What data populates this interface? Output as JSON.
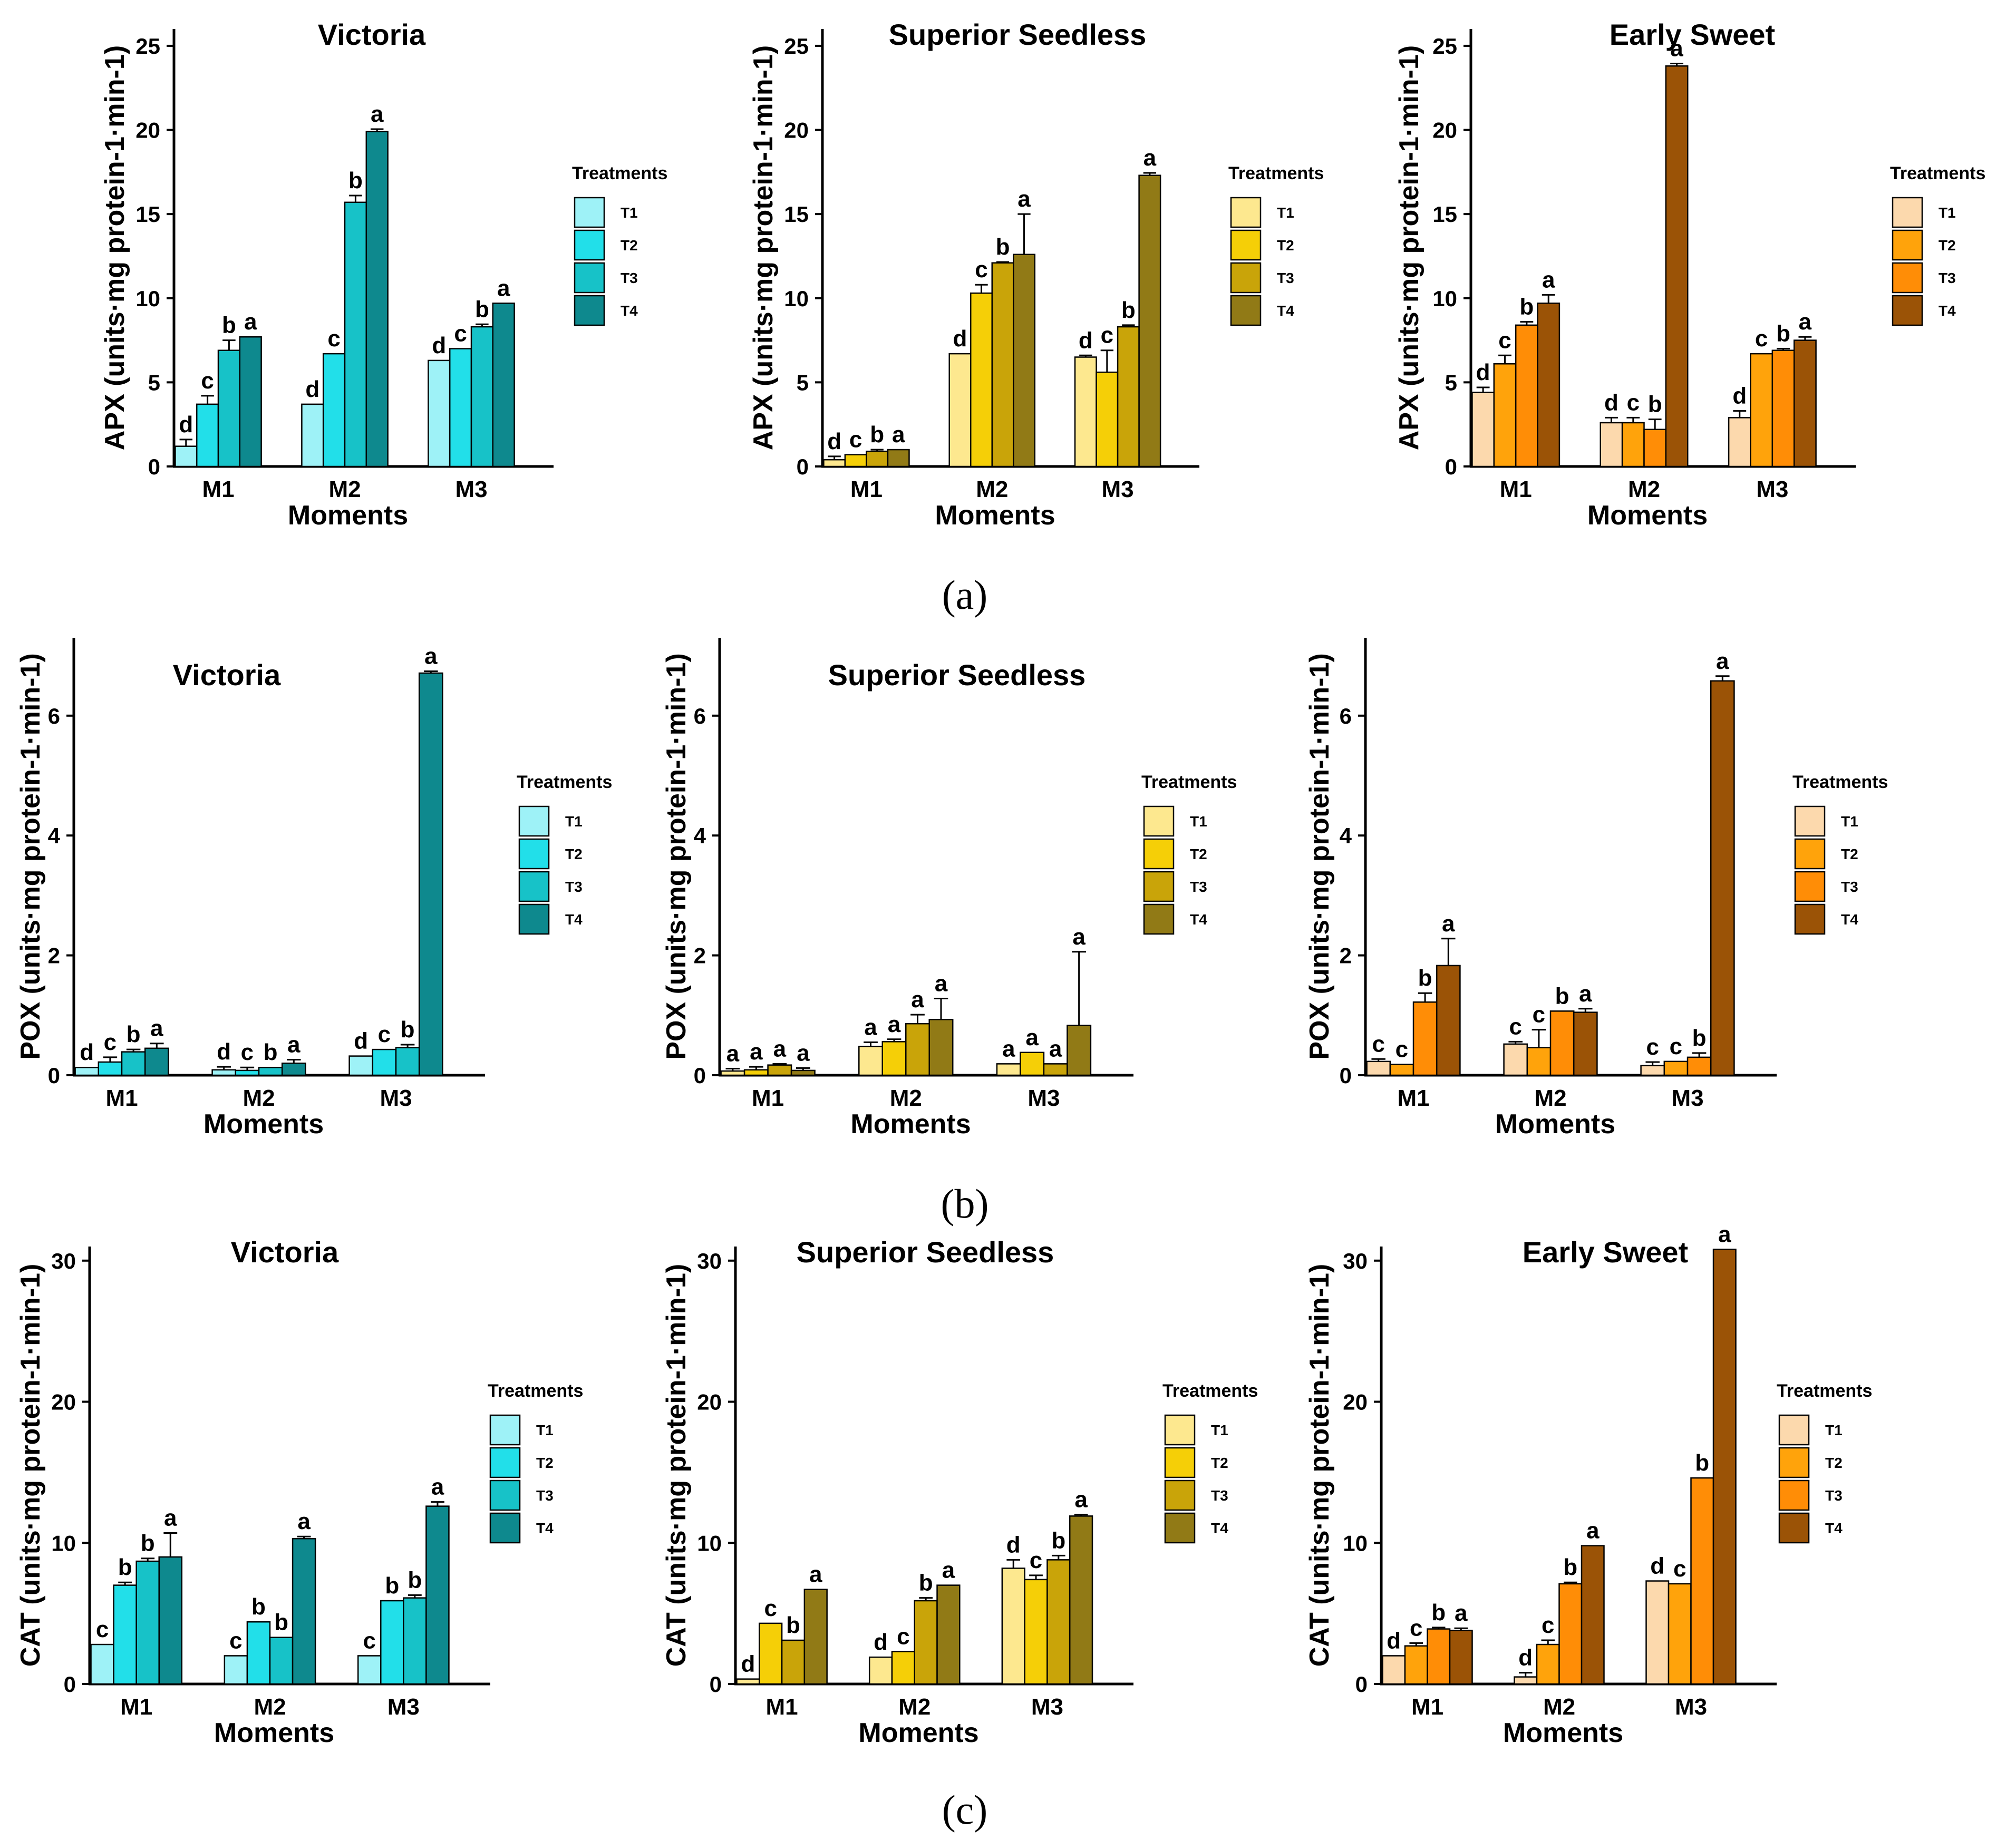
{
  "legend_title": "Treatments",
  "series_names": [
    "T1",
    "T2",
    "T3",
    "T4"
  ],
  "x_label": "Moments",
  "categories": [
    "M1",
    "M2",
    "M3"
  ],
  "palettes": {
    "Victoria": [
      "#9ef2f7",
      "#22dfe9",
      "#17c2c8",
      "#0e898e"
    ],
    "Superior Seedless": [
      "#fde88f",
      "#f5cf07",
      "#c9a409",
      "#917a16"
    ],
    "Early Sweet": [
      "#fcd9ad",
      "#ffa30b",
      "#ff8d06",
      "#9b5306"
    ]
  },
  "panel_labels": [
    "(a)",
    "(b)",
    "(c)"
  ],
  "chart_data": [
    {
      "type": "bar",
      "title": "Victoria",
      "xlabel": "Moments",
      "ylabel": "APX (units·mg protein-1·min-1)",
      "ylim": [
        0,
        26
      ],
      "yticks": [
        0,
        5,
        10,
        15,
        20,
        25
      ],
      "categories": [
        "M1",
        "M2",
        "M3"
      ],
      "series": [
        {
          "name": "T1",
          "values": [
            1.2,
            3.7,
            6.3
          ],
          "errors": [
            0.4,
            0,
            0
          ],
          "letters": [
            "d",
            "d",
            "d"
          ]
        },
        {
          "name": "T2",
          "values": [
            3.7,
            6.7,
            7.0
          ],
          "errors": [
            0.5,
            0,
            0
          ],
          "letters": [
            "c",
            "c",
            "c"
          ]
        },
        {
          "name": "T3",
          "values": [
            6.9,
            15.7,
            8.3
          ],
          "errors": [
            0.6,
            0.4,
            0.15
          ],
          "letters": [
            "b",
            "b",
            "b"
          ]
        },
        {
          "name": "T4",
          "values": [
            7.7,
            19.9,
            9.7
          ],
          "errors": [
            0,
            0.15,
            0
          ],
          "letters": [
            "a",
            "a",
            "a"
          ]
        }
      ]
    },
    {
      "type": "bar",
      "title": "Superior Seedless",
      "xlabel": "Moments",
      "ylabel": "APX (units·mg protein-1·min-1)",
      "ylim": [
        0,
        26
      ],
      "yticks": [
        0,
        5,
        10,
        15,
        20,
        25
      ],
      "categories": [
        "M1",
        "M2",
        "M3"
      ],
      "series": [
        {
          "name": "T1",
          "values": [
            0.4,
            6.7,
            6.5
          ],
          "errors": [
            0.2,
            0,
            0.1
          ],
          "letters": [
            "d",
            "d",
            "d"
          ]
        },
        {
          "name": "T2",
          "values": [
            0.7,
            10.3,
            5.6
          ],
          "errors": [
            0,
            0.5,
            1.3
          ],
          "letters": [
            "c",
            "c",
            "c"
          ]
        },
        {
          "name": "T3",
          "values": [
            0.9,
            12.1,
            8.3
          ],
          "errors": [
            0.1,
            0.05,
            0.1
          ],
          "letters": [
            "b",
            "b",
            "b"
          ]
        },
        {
          "name": "T4",
          "values": [
            1.0,
            12.6,
            17.3
          ],
          "errors": [
            0,
            2.4,
            0.15
          ],
          "letters": [
            "a",
            "a",
            "a"
          ]
        }
      ]
    },
    {
      "type": "bar",
      "title": "Early Sweet",
      "xlabel": "Moments",
      "ylabel": "APX (units·mg protein-1·min-1)",
      "ylim": [
        0,
        26
      ],
      "yticks": [
        0,
        5,
        10,
        15,
        20,
        25
      ],
      "categories": [
        "M1",
        "M2",
        "M3"
      ],
      "series": [
        {
          "name": "T1",
          "values": [
            4.4,
            2.6,
            2.9
          ],
          "errors": [
            0.3,
            0.3,
            0.4
          ],
          "letters": [
            "d",
            "d",
            "d"
          ]
        },
        {
          "name": "T2",
          "values": [
            6.1,
            2.6,
            6.7
          ],
          "errors": [
            0.5,
            0.3,
            0
          ],
          "letters": [
            "c",
            "c",
            "c"
          ]
        },
        {
          "name": "T3",
          "values": [
            8.4,
            2.2,
            6.9
          ],
          "errors": [
            0.2,
            0.6,
            0.1
          ],
          "letters": [
            "b",
            "b",
            "b"
          ]
        },
        {
          "name": "T4",
          "values": [
            9.7,
            23.8,
            7.5
          ],
          "errors": [
            0.5,
            0.15,
            0.2
          ],
          "letters": [
            "a",
            "a",
            "a"
          ]
        }
      ]
    },
    {
      "type": "bar",
      "title": "Victoria",
      "xlabel": "Moments",
      "ylabel": "POX (units·mg protein-1·min-1)",
      "ylim": [
        0,
        7.3
      ],
      "yticks": [
        0,
        2,
        4,
        6
      ],
      "categories": [
        "M1",
        "M2",
        "M3"
      ],
      "series": [
        {
          "name": "T1",
          "values": [
            0.13,
            0.09,
            0.32
          ],
          "errors": [
            0,
            0.05,
            0
          ],
          "letters": [
            "d",
            "d",
            "d"
          ]
        },
        {
          "name": "T2",
          "values": [
            0.22,
            0.08,
            0.43
          ],
          "errors": [
            0.08,
            0.05,
            0
          ],
          "letters": [
            "c",
            "c",
            "c"
          ]
        },
        {
          "name": "T3",
          "values": [
            0.39,
            0.13,
            0.46
          ],
          "errors": [
            0.04,
            0,
            0.05
          ],
          "letters": [
            "b",
            "b",
            "b"
          ]
        },
        {
          "name": "T4",
          "values": [
            0.45,
            0.2,
            6.71
          ],
          "errors": [
            0.08,
            0.06,
            0.03
          ],
          "letters": [
            "a",
            "a",
            "a"
          ]
        }
      ]
    },
    {
      "type": "bar",
      "title": "Superior Seedless",
      "xlabel": "Moments",
      "ylabel": "POX (units·mg protein-1·min-1)",
      "ylim": [
        0,
        7.3
      ],
      "yticks": [
        0,
        2,
        4,
        6
      ],
      "categories": [
        "M1",
        "M2",
        "M3"
      ],
      "series": [
        {
          "name": "T1",
          "values": [
            0.07,
            0.48,
            0.19
          ],
          "errors": [
            0.04,
            0.07,
            0
          ],
          "letters": [
            "a",
            "a",
            "a"
          ]
        },
        {
          "name": "T2",
          "values": [
            0.09,
            0.56,
            0.38
          ],
          "errors": [
            0.05,
            0.04,
            0
          ],
          "letters": [
            "a",
            "a",
            "a"
          ]
        },
        {
          "name": "T3",
          "values": [
            0.17,
            0.86,
            0.19
          ],
          "errors": [
            0.02,
            0.15,
            0
          ],
          "letters": [
            "a",
            "a",
            "a"
          ]
        },
        {
          "name": "T4",
          "values": [
            0.08,
            0.93,
            0.83
          ],
          "errors": [
            0.04,
            0.35,
            1.23
          ],
          "letters": [
            "a",
            "a",
            "a"
          ]
        }
      ]
    },
    {
      "type": "bar",
      "title": "",
      "xlabel": "Moments",
      "ylabel": "POX (units·mg protein-1·min-1)",
      "ylim": [
        0,
        7.3
      ],
      "yticks": [
        0,
        2,
        4,
        6
      ],
      "categories": [
        "M1",
        "M2",
        "M3"
      ],
      "series": [
        {
          "name": "T1",
          "values": [
            0.23,
            0.52,
            0.16
          ],
          "errors": [
            0.04,
            0.04,
            0.06
          ],
          "letters": [
            "c",
            "c",
            "c"
          ]
        },
        {
          "name": "T2",
          "values": [
            0.18,
            0.46,
            0.23
          ],
          "errors": [
            0,
            0.3,
            0
          ],
          "letters": [
            "c",
            "c",
            "c"
          ]
        },
        {
          "name": "T3",
          "values": [
            1.22,
            1.07,
            0.3
          ],
          "errors": [
            0.15,
            0,
            0.07
          ],
          "letters": [
            "b",
            "b",
            "b"
          ]
        },
        {
          "name": "T4",
          "values": [
            1.83,
            1.05,
            6.58
          ],
          "errors": [
            0.45,
            0.06,
            0.08
          ],
          "letters": [
            "a",
            "a",
            "a"
          ]
        }
      ]
    },
    {
      "type": "bar",
      "title": "Victoria",
      "xlabel": "Moments",
      "ylabel": "CAT (units·mg protein-1·min-1)",
      "ylim": [
        0,
        31
      ],
      "yticks": [
        0,
        10,
        20,
        30
      ],
      "categories": [
        "M1",
        "M2",
        "M3"
      ],
      "series": [
        {
          "name": "T1",
          "values": [
            2.8,
            2.0,
            2.0
          ],
          "errors": [
            0,
            0,
            0
          ],
          "letters": [
            "c",
            "c",
            "c"
          ]
        },
        {
          "name": "T2",
          "values": [
            7.0,
            4.4,
            5.9
          ],
          "errors": [
            0.2,
            0,
            0
          ],
          "letters": [
            "b",
            "b",
            "b"
          ]
        },
        {
          "name": "T3",
          "values": [
            8.7,
            3.3,
            6.1
          ],
          "errors": [
            0.2,
            0,
            0.2
          ],
          "letters": [
            "b",
            "b",
            "b"
          ]
        },
        {
          "name": "T4",
          "values": [
            9.0,
            10.3,
            12.6
          ],
          "errors": [
            1.7,
            0.15,
            0.3
          ],
          "letters": [
            "a",
            "a",
            "a"
          ]
        }
      ]
    },
    {
      "type": "bar",
      "title": "Superior Seedless",
      "xlabel": "Moments",
      "ylabel": "CAT (units·mg protein-1·min-1)",
      "ylim": [
        0,
        31
      ],
      "yticks": [
        0,
        10,
        20,
        30
      ],
      "categories": [
        "M1",
        "M2",
        "M3"
      ],
      "series": [
        {
          "name": "T1",
          "values": [
            0.35,
            1.9,
            8.2
          ],
          "errors": [
            0,
            0,
            0.6
          ],
          "letters": [
            "d",
            "d",
            "d"
          ]
        },
        {
          "name": "T2",
          "values": [
            4.3,
            2.3,
            7.4
          ],
          "errors": [
            0,
            0,
            0.3
          ],
          "letters": [
            "c",
            "c",
            "c"
          ]
        },
        {
          "name": "T3",
          "values": [
            3.1,
            5.9,
            8.8
          ],
          "errors": [
            0,
            0.2,
            0.3
          ],
          "letters": [
            "b",
            "b",
            "b"
          ]
        },
        {
          "name": "T4",
          "values": [
            6.7,
            7.0,
            11.9
          ],
          "errors": [
            0,
            0,
            0.1
          ],
          "letters": [
            "a",
            "a",
            "a"
          ]
        }
      ]
    },
    {
      "type": "bar",
      "title": "Early Sweet",
      "xlabel": "Moments",
      "ylabel": "CAT (units·mg protein-1·min-1)",
      "ylim": [
        0,
        31
      ],
      "yticks": [
        0,
        10,
        20,
        30
      ],
      "categories": [
        "M1",
        "M2",
        "M3"
      ],
      "series": [
        {
          "name": "T1",
          "values": [
            2.0,
            0.5,
            7.3
          ],
          "errors": [
            0,
            0.3,
            0
          ],
          "letters": [
            "d",
            "d",
            "d"
          ]
        },
        {
          "name": "T2",
          "values": [
            2.7,
            2.8,
            7.1
          ],
          "errors": [
            0.2,
            0.3,
            0
          ],
          "letters": [
            "c",
            "c",
            "c"
          ]
        },
        {
          "name": "T3",
          "values": [
            3.9,
            7.1,
            14.6
          ],
          "errors": [
            0.1,
            0.1,
            0
          ],
          "letters": [
            "b",
            "b",
            "b"
          ]
        },
        {
          "name": "T4",
          "values": [
            3.8,
            9.8,
            30.8
          ],
          "errors": [
            0.15,
            0,
            0
          ],
          "letters": [
            "a",
            "a",
            "a"
          ]
        }
      ]
    }
  ]
}
